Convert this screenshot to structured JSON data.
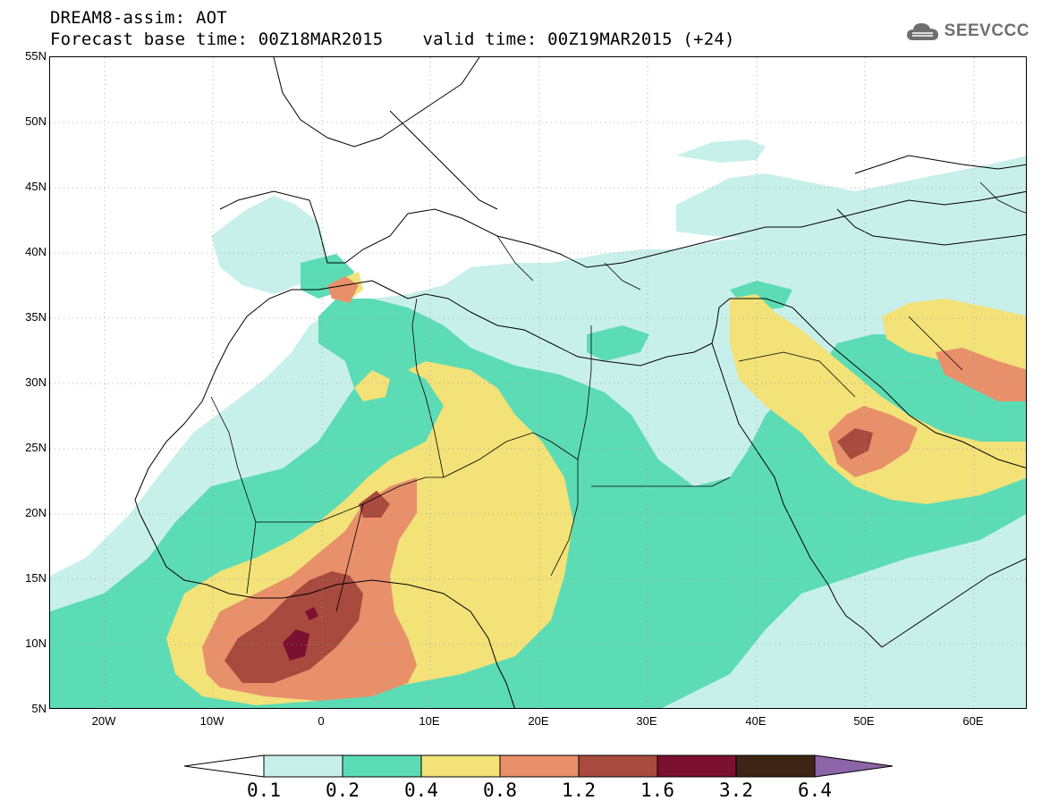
{
  "header": {
    "model_title": "DREAM8-assim: AOT",
    "base_time": "Forecast base time: 00Z18MAR2015",
    "valid_time": "valid time: 00Z19MAR2015 (+24)"
  },
  "logo": {
    "text": "SEEVCCC",
    "icon": "cloud-logo-icon"
  },
  "map": {
    "lon_range": [
      -25,
      65
    ],
    "lat_range": [
      5,
      55
    ],
    "grid": "dotted",
    "lat_labels": [
      "55N",
      "50N",
      "45N",
      "40N",
      "35N",
      "30N",
      "25N",
      "20N",
      "15N",
      "10N",
      "5N"
    ],
    "lon_labels": [
      "20W",
      "10W",
      "0",
      "10E",
      "20E",
      "30E",
      "40E",
      "50E",
      "60E"
    ]
  },
  "colorbar": {
    "levels": [
      "0.1",
      "0.2",
      "0.4",
      "0.8",
      "1.2",
      "1.6",
      "3.2",
      "6.4"
    ],
    "colors": [
      "#ffffff",
      "#c8f0ea",
      "#5cdcb4",
      "#f2e278",
      "#e8906a",
      "#a84a3e",
      "#7c1030",
      "#3e2414",
      "#8c64a8"
    ]
  }
}
